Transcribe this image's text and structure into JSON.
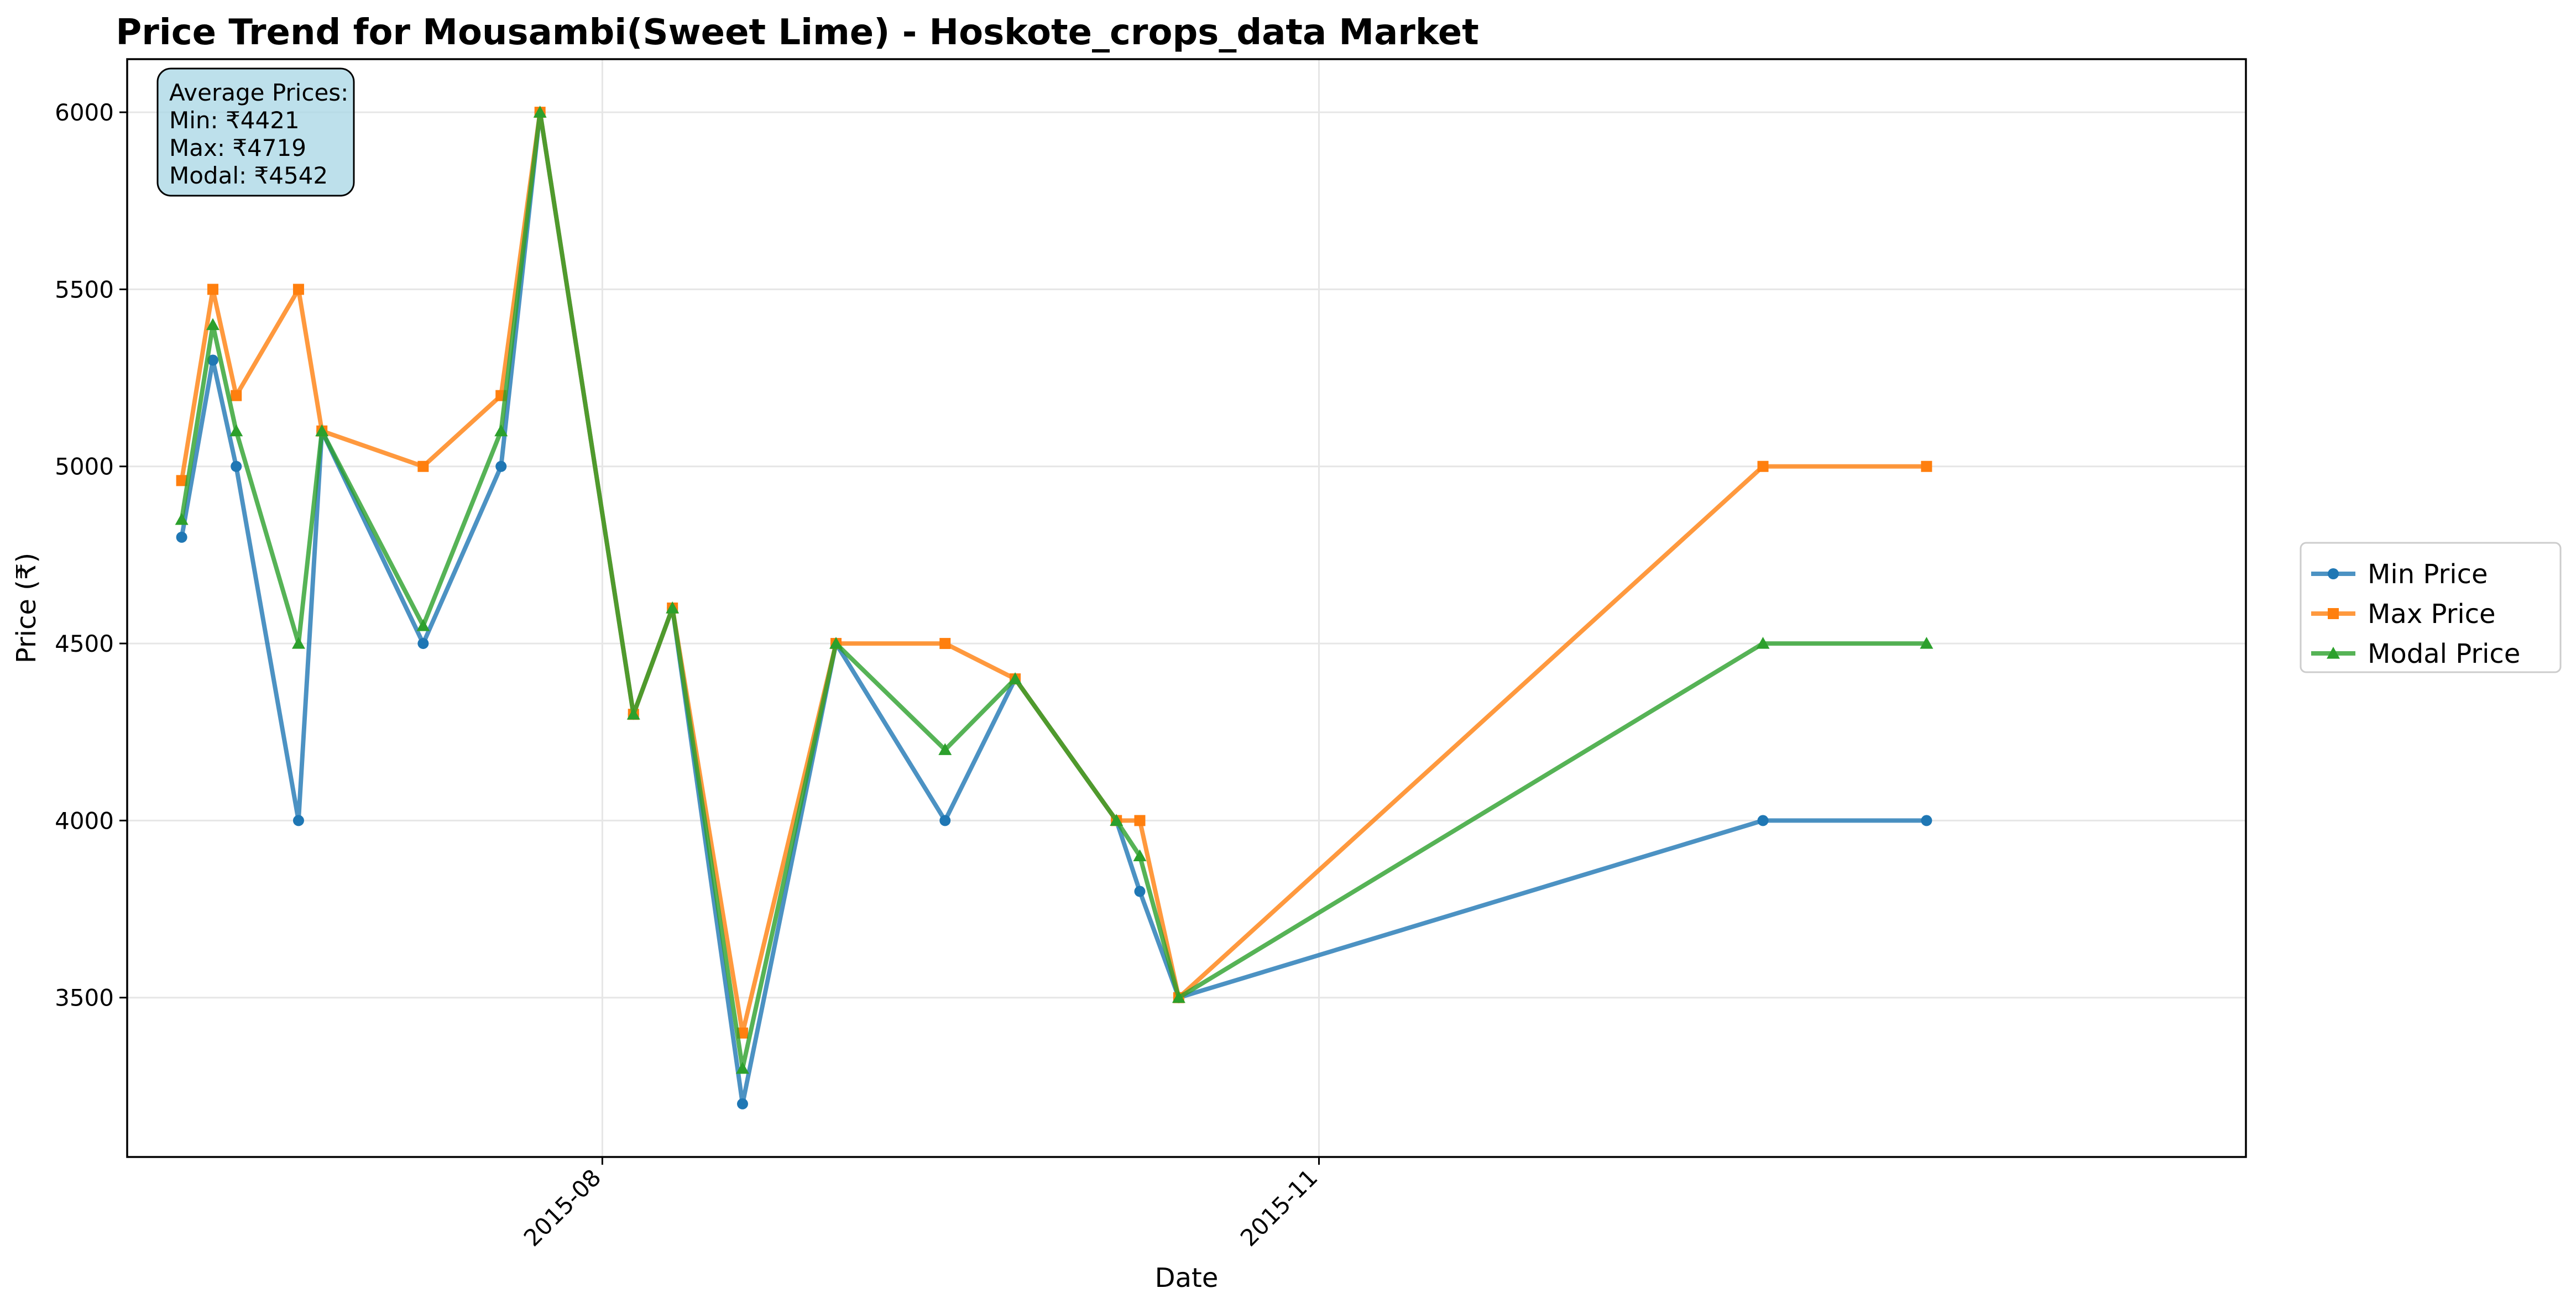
{
  "chart_data": {
    "type": "line",
    "title": "Price Trend for Mousambi(Sweet Lime) - Hoskote_crops_data Market",
    "xlabel": "Date",
    "ylabel": "Price (₹)",
    "x": [
      "2015-06-08",
      "2015-06-12",
      "2015-06-15",
      "2015-06-23",
      "2015-06-26",
      "2015-07-09",
      "2015-07-19",
      "2015-07-24",
      "2015-08-05",
      "2015-08-10",
      "2015-08-19",
      "2015-08-31",
      "2015-09-14",
      "2015-09-23",
      "2015-10-06",
      "2015-10-09",
      "2015-10-14",
      "2015-12-28",
      "2016-01-18"
    ],
    "xlim": [
      "2015-06-01",
      "2016-02-28"
    ],
    "xticks": [
      {
        "date": "2015-08-01",
        "label": "2015-08"
      },
      {
        "date": "2015-11-01",
        "label": "2015-11"
      }
    ],
    "ylim": [
      3050,
      6150
    ],
    "yticks": [
      3500,
      4000,
      4500,
      5000,
      5500,
      6000
    ],
    "grid": true,
    "legend_position": "right-outside",
    "series": [
      {
        "name": "Min Price",
        "color": "#1f77b4",
        "marker": "circle",
        "values": [
          4800,
          5300,
          5000,
          4000,
          5100,
          4500,
          5000,
          6000,
          4300,
          4600,
          3200,
          4500,
          4000,
          4400,
          4000,
          3800,
          3500,
          4000,
          4000
        ]
      },
      {
        "name": "Max Price",
        "color": "#ff7f0e",
        "marker": "square",
        "values": [
          4960,
          5500,
          5200,
          5500,
          5100,
          5000,
          5200,
          6000,
          4300,
          4600,
          3400,
          4500,
          4500,
          4400,
          4000,
          4000,
          3500,
          5000,
          5000
        ]
      },
      {
        "name": "Modal Price",
        "color": "#2ca02c",
        "marker": "triangle",
        "values": [
          4850,
          5400,
          5100,
          4500,
          5100,
          4550,
          5100,
          6000,
          4300,
          4600,
          3300,
          4500,
          4200,
          4400,
          4000,
          3900,
          3500,
          4500,
          4500
        ]
      }
    ],
    "annotation": {
      "lines": [
        "Average Prices:",
        "Min: ₹4421",
        "Max: ₹4719",
        "Modal: ₹4542"
      ],
      "background": "#add8e6"
    }
  }
}
